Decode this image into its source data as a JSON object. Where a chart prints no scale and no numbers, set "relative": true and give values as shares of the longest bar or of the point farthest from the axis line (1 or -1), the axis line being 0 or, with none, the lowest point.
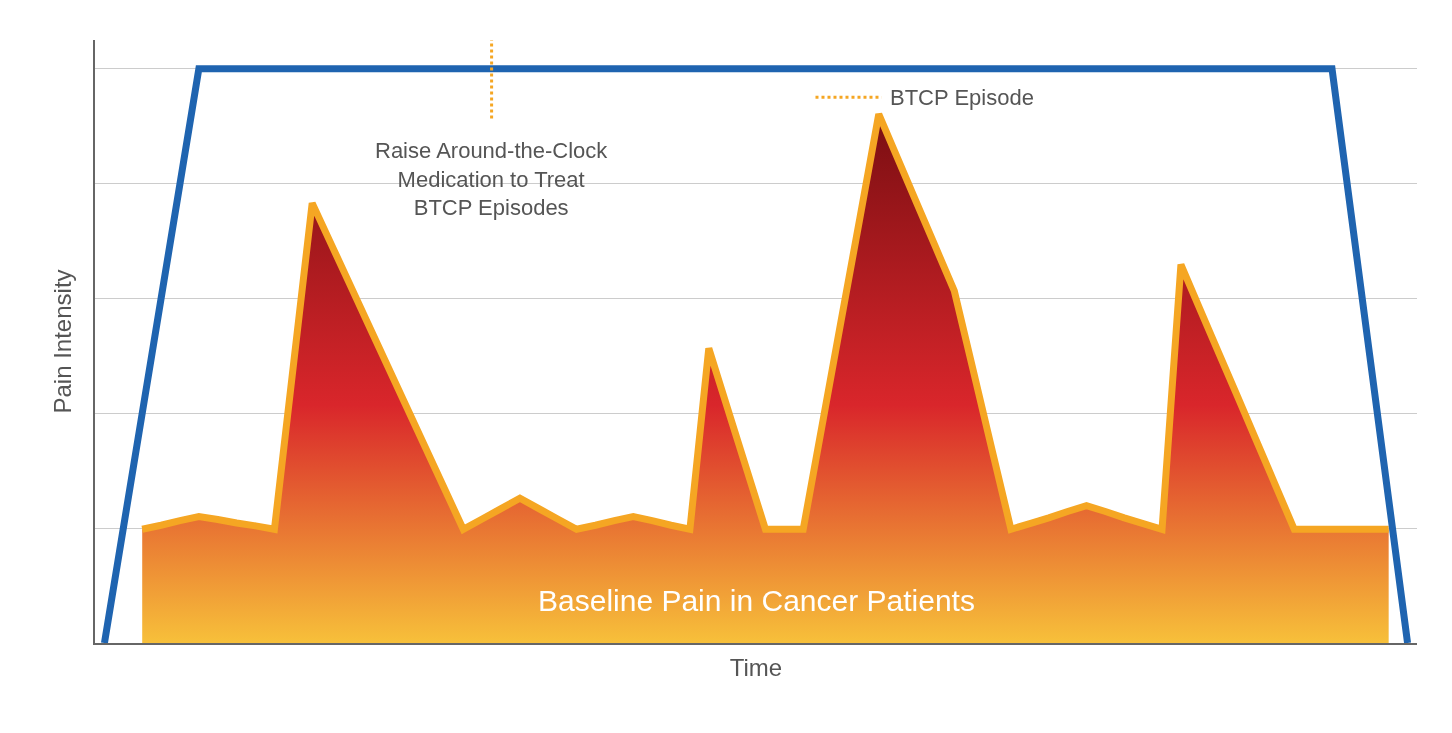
{
  "chart_data": {
    "type": "area",
    "relative": true,
    "xlabel": "Time",
    "ylabel": "Pain Intensity",
    "tick_labels": false,
    "grid": "y",
    "categories": [
      null,
      null,
      null,
      null,
      null,
      null,
      null,
      null,
      null,
      null,
      null,
      null,
      null,
      null,
      null,
      null,
      null,
      null,
      null,
      null,
      null,
      null,
      null,
      null,
      null,
      null,
      null,
      null,
      null,
      null,
      null,
      null,
      null,
      null,
      null,
      null,
      null,
      null,
      null,
      null,
      null,
      null,
      null,
      null,
      null,
      null,
      null,
      null,
      null,
      null,
      null,
      null,
      null,
      null,
      null,
      null,
      null,
      null,
      null,
      null,
      null,
      null,
      null,
      null,
      null,
      null,
      null,
      null,
      null,
      null
    ],
    "series": [
      {
        "color": "#f5a623",
        "values": [
          null,
          null,
          0.198,
          0.205,
          0.213,
          0.22,
          0.215,
          0.209,
          0.204,
          0.198,
          0.482,
          0.766,
          0.695,
          0.624,
          0.553,
          0.482,
          0.411,
          0.34,
          0.269,
          0.198,
          0.216,
          0.234,
          0.252,
          0.234,
          0.216,
          0.198,
          0.205,
          0.213,
          0.22,
          0.213,
          0.205,
          0.198,
          0.513,
          0.408,
          0.303,
          0.198,
          0.198,
          0.198,
          0.379,
          0.56,
          0.74,
          0.921,
          0.844,
          0.767,
          0.69,
          0.613,
          0.475,
          0.336,
          0.198,
          0.208,
          0.218,
          0.229,
          0.239,
          0.229,
          0.218,
          0.208,
          0.198,
          0.659,
          0.582,
          0.505,
          0.429,
          0.352,
          0.275,
          0.198,
          0.198,
          0.198,
          0.198,
          0.198,
          0.198,
          null
        ]
      },
      {
        "type": "line",
        "color": "#1f64b0",
        "values": [
          0,
          0.2,
          0.4,
          0.6,
          0.8,
          1,
          1,
          1,
          1,
          1,
          1,
          1,
          1,
          1,
          1,
          1,
          1,
          1,
          1,
          1,
          1,
          1,
          1,
          1,
          1,
          1,
          1,
          1,
          1,
          1,
          1,
          1,
          1,
          1,
          1,
          1,
          1,
          1,
          1,
          1,
          1,
          1,
          1,
          1,
          1,
          1,
          1,
          1,
          1,
          1,
          1,
          1,
          1,
          1,
          1,
          1,
          1,
          1,
          1,
          1,
          1,
          1,
          1,
          1,
          1,
          1,
          0.75,
          0.5,
          0.25,
          0
        ]
      }
    ],
    "annotations": [
      "BTCP Episode",
      "Raise Around-the-Clock\nMedication to Treat\nBTCP Episodes",
      "Baseline Pain in Cancer Patients"
    ]
  }
}
